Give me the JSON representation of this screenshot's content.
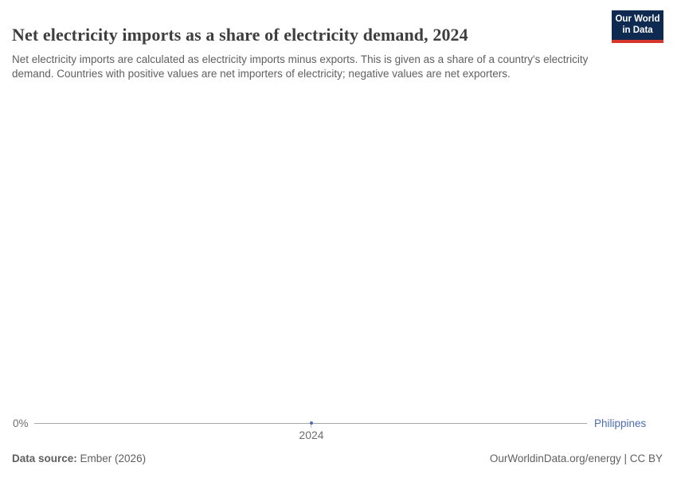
{
  "header": {
    "title": "Net electricity imports as a share of electricity demand, 2024",
    "subtitle": "Net electricity imports are calculated as electricity imports minus exports. This is given as a share of a country's electricity demand. Countries with positive values are net importers of electricity; negative values are net exporters.",
    "logo": {
      "line1": "Our World",
      "line2": "in Data"
    }
  },
  "chart_data": {
    "type": "line",
    "title": "Net electricity imports as a share of electricity demand, 2024",
    "x": [
      2024
    ],
    "series": [
      {
        "name": "Philippines",
        "values": [
          0
        ],
        "color": "#4d6cae"
      }
    ],
    "unit": "%",
    "xlabel": "",
    "ylabel": "",
    "x_ticks": [
      "2024"
    ],
    "y_ticks": [
      "0%"
    ],
    "grid": false,
    "legend_position": "right-of-line-end"
  },
  "axis": {
    "y_zero_label": "0%",
    "x_tick_label": "2024",
    "entity_label": "Philippines"
  },
  "footer": {
    "source_label": "Data source:",
    "source_value": " Ember (2026)",
    "attribution": "OurWorldinData.org/energy | CC BY"
  },
  "colors": {
    "series_blue": "#4d6cae",
    "gridline_gray": "#a6a6a6",
    "tick_label_gray": "#6e6e6e",
    "text_gray": "#5f5f5f",
    "title_dark": "#3e3e3e",
    "logo_navy": "#0e2a51",
    "logo_red": "#d7362c"
  }
}
